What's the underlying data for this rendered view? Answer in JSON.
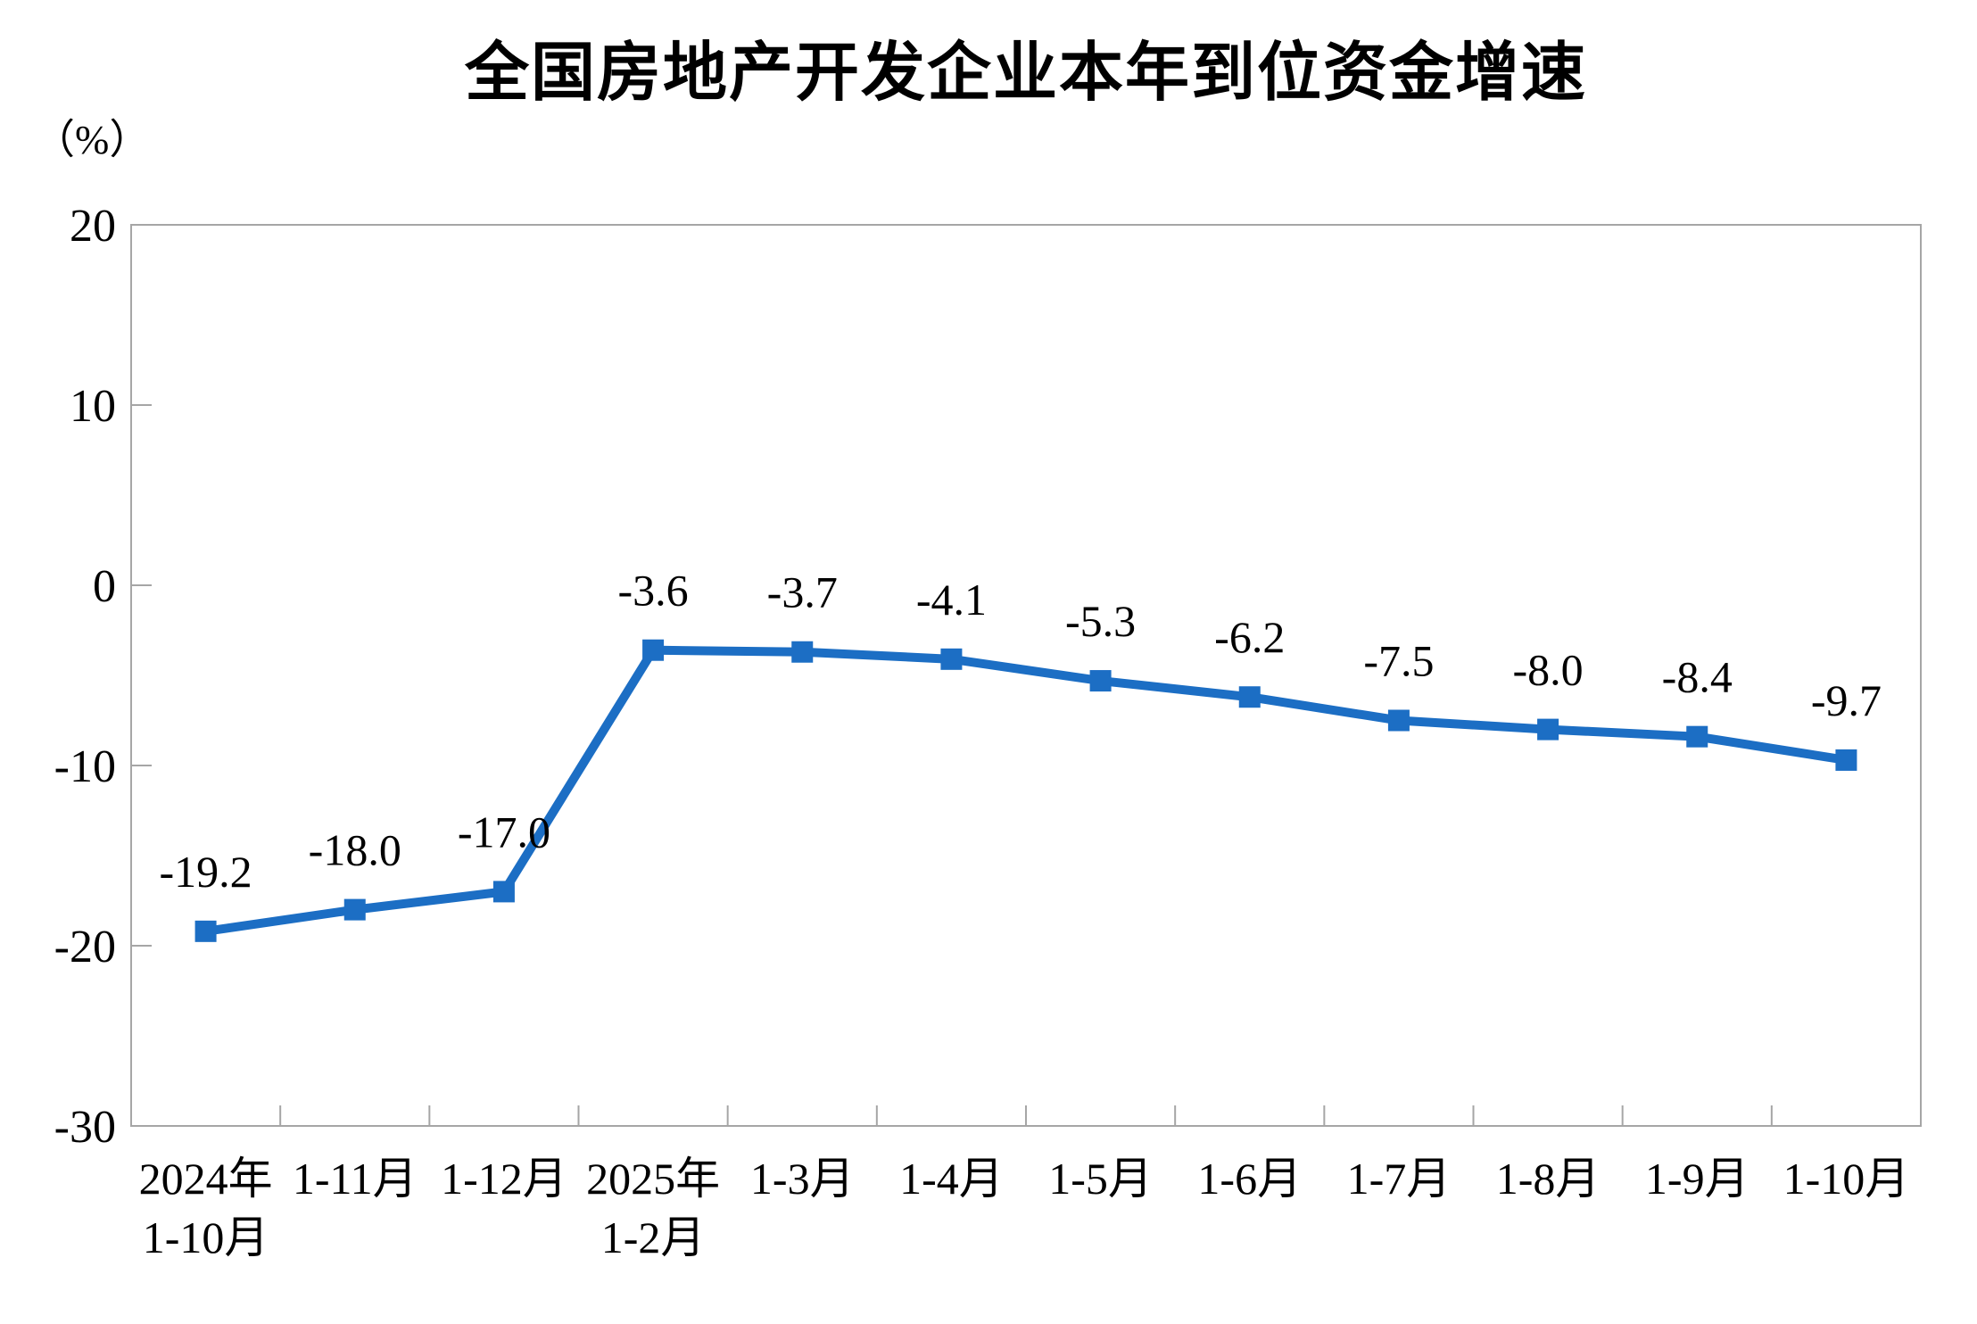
{
  "chart_data": {
    "type": "line",
    "title": "全国房地产开发企业本年到位资金增速",
    "unit_label": "（%）",
    "categories": [
      [
        "2024年",
        "1-10月"
      ],
      [
        "1-11月"
      ],
      [
        "1-12月"
      ],
      [
        "2025年",
        "1-2月"
      ],
      [
        "1-3月"
      ],
      [
        "1-4月"
      ],
      [
        "1-5月"
      ],
      [
        "1-6月"
      ],
      [
        "1-7月"
      ],
      [
        "1-8月"
      ],
      [
        "1-9月"
      ],
      [
        "1-10月"
      ]
    ],
    "values": [
      -19.2,
      -18.0,
      -17.0,
      -3.6,
      -3.7,
      -4.1,
      -5.3,
      -6.2,
      -7.5,
      -8.0,
      -8.4,
      -9.7
    ],
    "data_labels": [
      "-19.2",
      "-18.0",
      "-17.0",
      "-3.6",
      "-3.7",
      "-4.1",
      "-5.3",
      "-6.2",
      "-7.5",
      "-8.0",
      "-8.4",
      "-9.7"
    ],
    "y_ticks": [
      20,
      10,
      0,
      -10,
      -20,
      -30
    ],
    "ylim": [
      -30,
      20
    ],
    "grid": false,
    "legend": "none",
    "marker": "square",
    "colors": {
      "line": "#1C6EC4",
      "marker": "#1C6EC4",
      "axis": "#A6A6A6",
      "text": "#000000"
    }
  }
}
